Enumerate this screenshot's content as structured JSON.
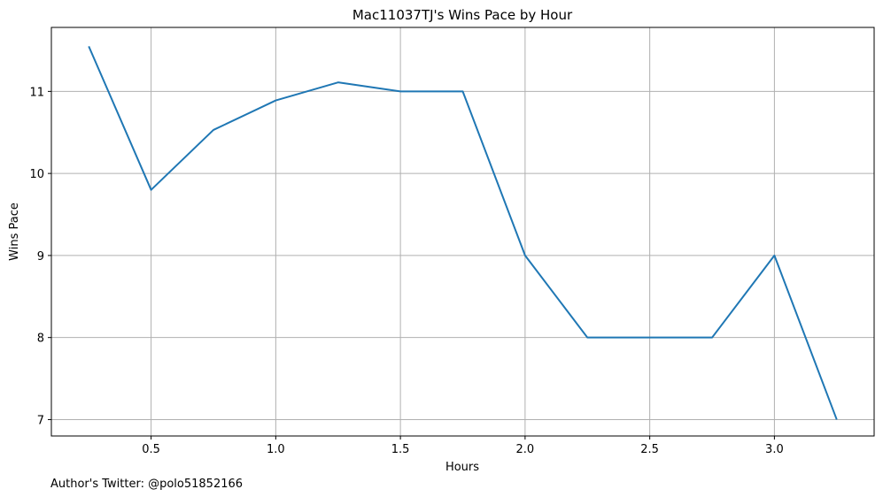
{
  "chart_data": {
    "type": "line",
    "title": "Mac11037TJ's Wins Pace by Hour",
    "xlabel": "Hours",
    "ylabel": "Wins Pace",
    "xlim": [
      0.1,
      3.4
    ],
    "ylim": [
      6.8,
      11.78
    ],
    "xticks": [
      0.5,
      1.0,
      1.5,
      2.0,
      2.5,
      3.0
    ],
    "xtick_labels": [
      "0.5",
      "1.0",
      "1.5",
      "2.0",
      "2.5",
      "3.0"
    ],
    "yticks": [
      7,
      8,
      9,
      10,
      11
    ],
    "ytick_labels": [
      "7",
      "8",
      "9",
      "10",
      "11"
    ],
    "grid": true,
    "legend": "none",
    "series": [
      {
        "color": "#1f77b4",
        "x": [
          0.25,
          0.5,
          0.75,
          1.0,
          1.25,
          1.5,
          1.75,
          2.0,
          2.25,
          2.5,
          2.75,
          3.0,
          3.25
        ],
        "y": [
          11.55,
          9.8,
          10.53,
          10.89,
          11.11,
          11.0,
          11.0,
          9.0,
          8.0,
          8.0,
          8.0,
          9.0,
          7.0
        ]
      }
    ]
  },
  "footnote": "Author's Twitter: @polo51852166",
  "colors": {
    "grid": "#b0b0b0",
    "axes": "#000000",
    "line": "#1f77b4"
  }
}
